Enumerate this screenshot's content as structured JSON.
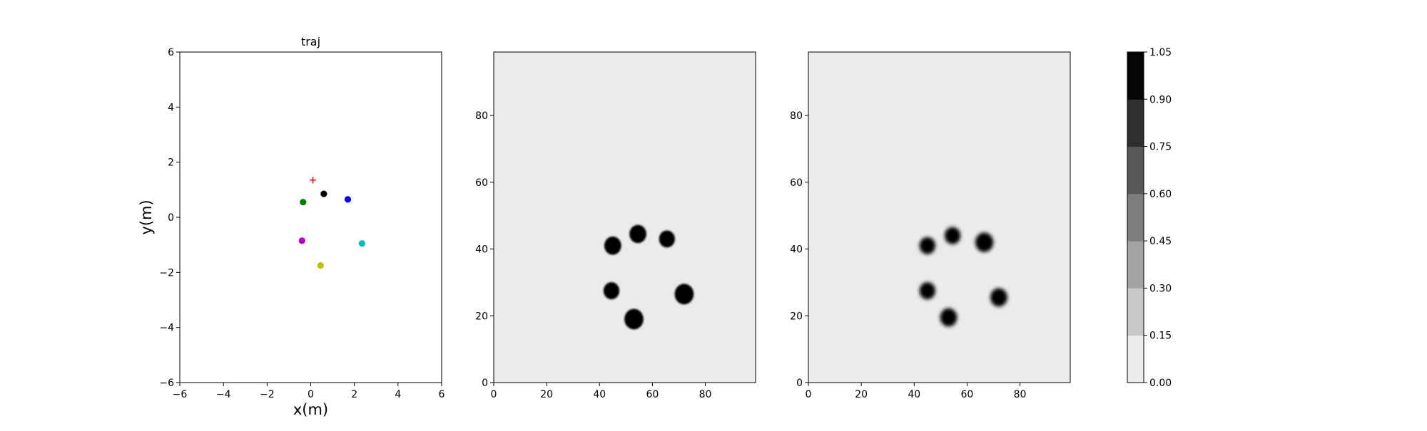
{
  "chart_data": [
    {
      "type": "scatter",
      "title": "traj",
      "xlabel": "x(m)",
      "ylabel": "y(m)",
      "xlim": [
        -6,
        6
      ],
      "ylim": [
        -6,
        6
      ],
      "xticks": [
        -6,
        -4,
        -2,
        0,
        2,
        4,
        6
      ],
      "yticks": [
        -6,
        -4,
        -2,
        0,
        2,
        4,
        6
      ],
      "grid": false,
      "series": [
        {
          "color": "#000000",
          "marker": "circle",
          "points": [
            [
              0.6,
              0.85
            ]
          ]
        },
        {
          "color": "#0000ff",
          "marker": "circle",
          "points": [
            [
              1.7,
              0.65
            ]
          ]
        },
        {
          "color": "#008000",
          "marker": "circle",
          "points": [
            [
              -0.35,
              0.55
            ]
          ]
        },
        {
          "color": "#bf00bf",
          "marker": "circle",
          "points": [
            [
              -0.4,
              -0.85
            ]
          ]
        },
        {
          "color": "#00bfbf",
          "marker": "circle",
          "points": [
            [
              2.35,
              -0.95
            ]
          ]
        },
        {
          "color": "#bfbf00",
          "marker": "circle",
          "points": [
            [
              0.45,
              -1.75
            ]
          ]
        },
        {
          "color": "#ff0000",
          "marker": "plus",
          "points": [
            [
              0.1,
              1.35
            ]
          ]
        }
      ]
    },
    {
      "type": "heatmap",
      "title": "",
      "xlim": [
        0,
        99
      ],
      "ylim": [
        0,
        99
      ],
      "xticks": [
        0,
        20,
        40,
        60,
        80
      ],
      "yticks": [
        0,
        20,
        40,
        60,
        80
      ],
      "background_value": 0.05,
      "blobs": [
        {
          "x": 45,
          "y": 41,
          "r": 3.2,
          "value": 1.0
        },
        {
          "x": 54.5,
          "y": 44.5,
          "r": 3.2,
          "value": 1.0
        },
        {
          "x": 65.5,
          "y": 43,
          "r": 3.0,
          "value": 1.0
        },
        {
          "x": 44.5,
          "y": 27.5,
          "r": 3.0,
          "value": 1.0
        },
        {
          "x": 72,
          "y": 26.5,
          "r": 3.6,
          "value": 1.0
        },
        {
          "x": 53,
          "y": 19,
          "r": 3.6,
          "value": 1.0
        }
      ]
    },
    {
      "type": "heatmap",
      "title": "",
      "xlim": [
        0,
        99
      ],
      "ylim": [
        0,
        99
      ],
      "xticks": [
        0,
        20,
        40,
        60,
        80
      ],
      "yticks": [
        0,
        20,
        40,
        60,
        80
      ],
      "background_value": 0.05,
      "blobs": [
        {
          "x": 45,
          "y": 41,
          "r": 3.0,
          "value": 1.0
        },
        {
          "x": 54.5,
          "y": 44,
          "r": 3.0,
          "value": 1.0
        },
        {
          "x": 66.5,
          "y": 42,
          "r": 3.4,
          "value": 1.0
        },
        {
          "x": 45,
          "y": 27.5,
          "r": 3.0,
          "value": 1.0
        },
        {
          "x": 72,
          "y": 25.5,
          "r": 3.2,
          "value": 1.0
        },
        {
          "x": 53,
          "y": 19.5,
          "r": 3.2,
          "value": 1.0
        }
      ]
    },
    {
      "type": "colorbar",
      "levels": [
        "0.00",
        "0.15",
        "0.30",
        "0.45",
        "0.60",
        "0.75",
        "0.90",
        "1.05"
      ],
      "colors": [
        "#ebebeb",
        "#c8c8c8",
        "#a3a3a3",
        "#7d7d7d",
        "#575757",
        "#2f2f2f",
        "#050505"
      ]
    }
  ]
}
